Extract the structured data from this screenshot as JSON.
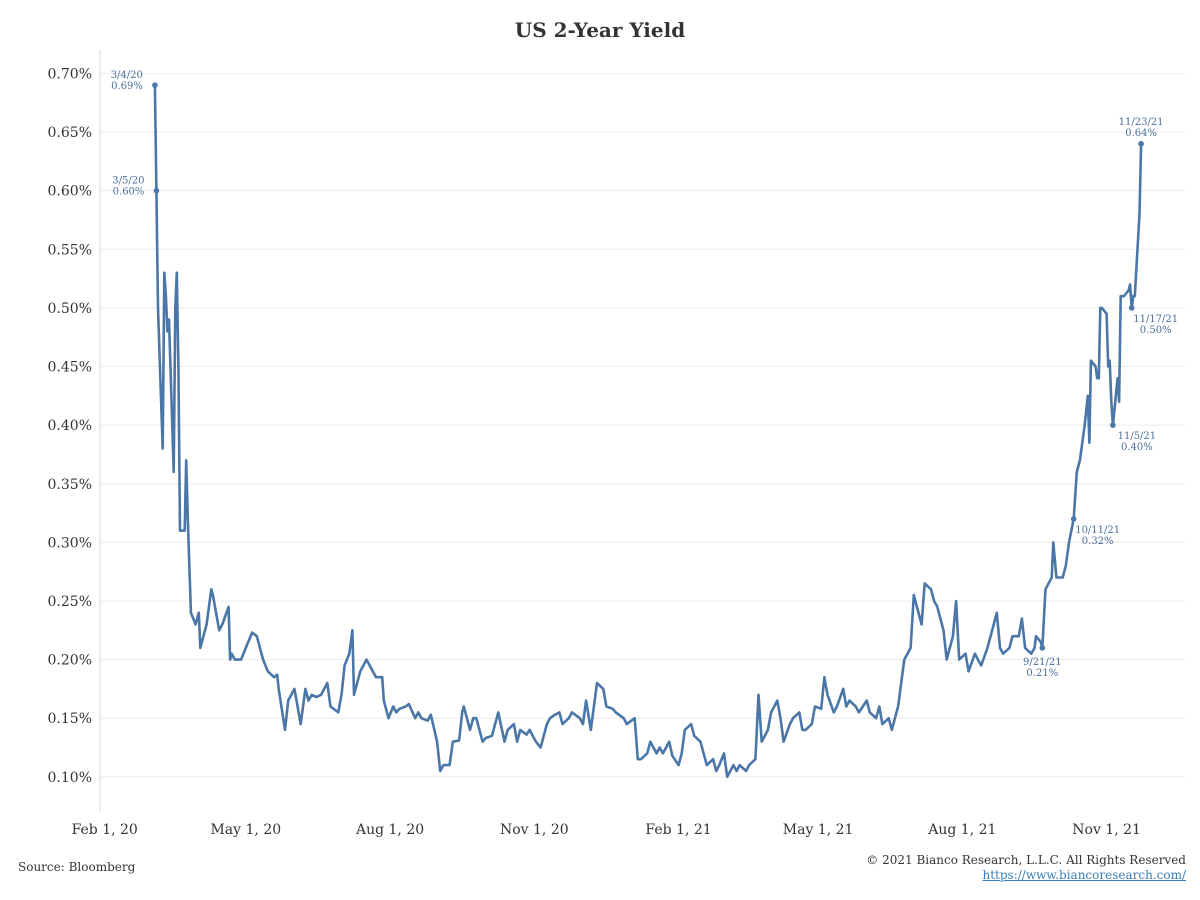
{
  "chart_data": {
    "type": "line",
    "title": "US 2-Year Yield",
    "xlabel": "",
    "ylabel": "",
    "x_range": [
      "2020-01-29",
      "2021-12-21"
    ],
    "ylim": [
      0.07,
      0.72
    ],
    "y_ticks": [
      0.1,
      0.15,
      0.2,
      0.25,
      0.3,
      0.35,
      0.4,
      0.45,
      0.5,
      0.55,
      0.6,
      0.65,
      0.7
    ],
    "y_tick_labels": [
      "0.10%",
      "0.15%",
      "0.20%",
      "0.25%",
      "0.30%",
      "0.35%",
      "0.40%",
      "0.45%",
      "0.50%",
      "0.55%",
      "0.60%",
      "0.65%",
      "0.70%"
    ],
    "x_ticks": [
      "2020-02-01",
      "2020-05-01",
      "2020-08-01",
      "2020-11-01",
      "2021-02-01",
      "2021-05-01",
      "2021-08-01",
      "2021-11-01"
    ],
    "x_tick_labels": [
      "Feb 1, 20",
      "May 1, 20",
      "Aug 1, 20",
      "Nov 1, 20",
      "Feb 1, 21",
      "May 1, 21",
      "Aug 1, 21",
      "Nov 1, 21"
    ],
    "grid": "horizontal",
    "series": [
      {
        "color": "#4a76a8",
        "points": [
          [
            "2020-03-04",
            0.69
          ],
          [
            "2020-03-05",
            0.6
          ],
          [
            "2020-03-06",
            0.5
          ],
          [
            "2020-03-09",
            0.38
          ],
          [
            "2020-03-10",
            0.53
          ],
          [
            "2020-03-11",
            0.51
          ],
          [
            "2020-03-12",
            0.48
          ],
          [
            "2020-03-13",
            0.49
          ],
          [
            "2020-03-16",
            0.36
          ],
          [
            "2020-03-17",
            0.5
          ],
          [
            "2020-03-18",
            0.53
          ],
          [
            "2020-03-19",
            0.45
          ],
          [
            "2020-03-20",
            0.31
          ],
          [
            "2020-03-23",
            0.31
          ],
          [
            "2020-03-24",
            0.37
          ],
          [
            "2020-03-25",
            0.32
          ],
          [
            "2020-03-27",
            0.24
          ],
          [
            "2020-03-30",
            0.23
          ],
          [
            "2020-04-01",
            0.24
          ],
          [
            "2020-04-02",
            0.21
          ],
          [
            "2020-04-06",
            0.23
          ],
          [
            "2020-04-09",
            0.26
          ],
          [
            "2020-04-10",
            0.255
          ],
          [
            "2020-04-14",
            0.225
          ],
          [
            "2020-04-16",
            0.23
          ],
          [
            "2020-04-20",
            0.245
          ],
          [
            "2020-04-21",
            0.2
          ],
          [
            "2020-04-22",
            0.205
          ],
          [
            "2020-04-24",
            0.2
          ],
          [
            "2020-04-28",
            0.2
          ],
          [
            "2020-05-01",
            0.21
          ],
          [
            "2020-05-05",
            0.223
          ],
          [
            "2020-05-08",
            0.22
          ],
          [
            "2020-05-12",
            0.2
          ],
          [
            "2020-05-15",
            0.19
          ],
          [
            "2020-05-19",
            0.185
          ],
          [
            "2020-05-21",
            0.187
          ],
          [
            "2020-05-22",
            0.175
          ],
          [
            "2020-05-26",
            0.14
          ],
          [
            "2020-05-28",
            0.165
          ],
          [
            "2020-06-01",
            0.175
          ],
          [
            "2020-06-03",
            0.16
          ],
          [
            "2020-06-05",
            0.145
          ],
          [
            "2020-06-08",
            0.175
          ],
          [
            "2020-06-10",
            0.165
          ],
          [
            "2020-06-12",
            0.17
          ],
          [
            "2020-06-15",
            0.168
          ],
          [
            "2020-06-18",
            0.17
          ],
          [
            "2020-06-22",
            0.18
          ],
          [
            "2020-06-24",
            0.16
          ],
          [
            "2020-06-29",
            0.155
          ],
          [
            "2020-07-01",
            0.17
          ],
          [
            "2020-07-03",
            0.195
          ],
          [
            "2020-07-06",
            0.205
          ],
          [
            "2020-07-08",
            0.225
          ],
          [
            "2020-07-09",
            0.17
          ],
          [
            "2020-07-13",
            0.19
          ],
          [
            "2020-07-15",
            0.195
          ],
          [
            "2020-07-17",
            0.2
          ],
          [
            "2020-07-21",
            0.19
          ],
          [
            "2020-07-23",
            0.185
          ],
          [
            "2020-07-27",
            0.185
          ],
          [
            "2020-07-28",
            0.165
          ],
          [
            "2020-07-31",
            0.15
          ],
          [
            "2020-08-03",
            0.16
          ],
          [
            "2020-08-05",
            0.155
          ],
          [
            "2020-08-07",
            0.158
          ],
          [
            "2020-08-11",
            0.16
          ],
          [
            "2020-08-13",
            0.162
          ],
          [
            "2020-08-17",
            0.15
          ],
          [
            "2020-08-19",
            0.155
          ],
          [
            "2020-08-21",
            0.15
          ],
          [
            "2020-08-25",
            0.148
          ],
          [
            "2020-08-27",
            0.153
          ],
          [
            "2020-08-31",
            0.13
          ],
          [
            "2020-09-02",
            0.105
          ],
          [
            "2020-09-04",
            0.11
          ],
          [
            "2020-09-08",
            0.11
          ],
          [
            "2020-09-10",
            0.13
          ],
          [
            "2020-09-14",
            0.131
          ],
          [
            "2020-09-16",
            0.155
          ],
          [
            "2020-09-17",
            0.16
          ],
          [
            "2020-09-21",
            0.14
          ],
          [
            "2020-09-23",
            0.15
          ],
          [
            "2020-09-25",
            0.15
          ],
          [
            "2020-09-29",
            0.13
          ],
          [
            "2020-10-01",
            0.133
          ],
          [
            "2020-10-05",
            0.135
          ],
          [
            "2020-10-07",
            0.145
          ],
          [
            "2020-10-09",
            0.155
          ],
          [
            "2020-10-13",
            0.13
          ],
          [
            "2020-10-15",
            0.14
          ],
          [
            "2020-10-19",
            0.145
          ],
          [
            "2020-10-21",
            0.13
          ],
          [
            "2020-10-23",
            0.14
          ],
          [
            "2020-10-27",
            0.136
          ],
          [
            "2020-10-29",
            0.14
          ],
          [
            "2020-11-02",
            0.13
          ],
          [
            "2020-11-05",
            0.125
          ],
          [
            "2020-11-09",
            0.145
          ],
          [
            "2020-11-11",
            0.15
          ],
          [
            "2020-11-13",
            0.152
          ],
          [
            "2020-11-17",
            0.155
          ],
          [
            "2020-11-19",
            0.145
          ],
          [
            "2020-11-23",
            0.15
          ],
          [
            "2020-11-25",
            0.155
          ],
          [
            "2020-11-30",
            0.15
          ],
          [
            "2020-12-02",
            0.145
          ],
          [
            "2020-12-04",
            0.165
          ],
          [
            "2020-12-07",
            0.14
          ],
          [
            "2020-12-09",
            0.16
          ],
          [
            "2020-12-11",
            0.18
          ],
          [
            "2020-12-15",
            0.175
          ],
          [
            "2020-12-17",
            0.16
          ],
          [
            "2020-12-21",
            0.158
          ],
          [
            "2020-12-23",
            0.155
          ],
          [
            "2020-12-28",
            0.15
          ],
          [
            "2020-12-30",
            0.145
          ],
          [
            "2021-01-04",
            0.15
          ],
          [
            "2021-01-06",
            0.115
          ],
          [
            "2021-01-08",
            0.115
          ],
          [
            "2021-01-12",
            0.12
          ],
          [
            "2021-01-14",
            0.13
          ],
          [
            "2021-01-18",
            0.12
          ],
          [
            "2021-01-20",
            0.125
          ],
          [
            "2021-01-22",
            0.12
          ],
          [
            "2021-01-26",
            0.13
          ],
          [
            "2021-01-28",
            0.118
          ],
          [
            "2021-02-01",
            0.11
          ],
          [
            "2021-02-03",
            0.12
          ],
          [
            "2021-02-05",
            0.14
          ],
          [
            "2021-02-09",
            0.145
          ],
          [
            "2021-02-11",
            0.135
          ],
          [
            "2021-02-15",
            0.13
          ],
          [
            "2021-02-17",
            0.12
          ],
          [
            "2021-02-19",
            0.11
          ],
          [
            "2021-02-23",
            0.115
          ],
          [
            "2021-02-25",
            0.105
          ],
          [
            "2021-02-27",
            0.11
          ],
          [
            "2021-03-02",
            0.12
          ],
          [
            "2021-03-04",
            0.1
          ],
          [
            "2021-03-08",
            0.11
          ],
          [
            "2021-03-10",
            0.105
          ],
          [
            "2021-03-12",
            0.11
          ],
          [
            "2021-03-16",
            0.105
          ],
          [
            "2021-03-18",
            0.11
          ],
          [
            "2021-03-22",
            0.115
          ],
          [
            "2021-03-24",
            0.17
          ],
          [
            "2021-03-26",
            0.13
          ],
          [
            "2021-03-30",
            0.14
          ],
          [
            "2021-04-01",
            0.155
          ],
          [
            "2021-04-05",
            0.165
          ],
          [
            "2021-04-07",
            0.15
          ],
          [
            "2021-04-09",
            0.13
          ],
          [
            "2021-04-13",
            0.145
          ],
          [
            "2021-04-15",
            0.15
          ],
          [
            "2021-04-19",
            0.155
          ],
          [
            "2021-04-21",
            0.14
          ],
          [
            "2021-04-23",
            0.14
          ],
          [
            "2021-04-27",
            0.145
          ],
          [
            "2021-04-29",
            0.16
          ],
          [
            "2021-05-03",
            0.158
          ],
          [
            "2021-05-05",
            0.185
          ],
          [
            "2021-05-07",
            0.17
          ],
          [
            "2021-05-11",
            0.155
          ],
          [
            "2021-05-13",
            0.16
          ],
          [
            "2021-05-17",
            0.175
          ],
          [
            "2021-05-19",
            0.16
          ],
          [
            "2021-05-21",
            0.165
          ],
          [
            "2021-05-25",
            0.16
          ],
          [
            "2021-05-27",
            0.155
          ],
          [
            "2021-06-01",
            0.165
          ],
          [
            "2021-06-03",
            0.155
          ],
          [
            "2021-06-07",
            0.15
          ],
          [
            "2021-06-09",
            0.16
          ],
          [
            "2021-06-11",
            0.145
          ],
          [
            "2021-06-15",
            0.15
          ],
          [
            "2021-06-17",
            0.14
          ],
          [
            "2021-06-21",
            0.16
          ],
          [
            "2021-06-23",
            0.18
          ],
          [
            "2021-06-25",
            0.2
          ],
          [
            "2021-06-29",
            0.21
          ],
          [
            "2021-07-01",
            0.255
          ],
          [
            "2021-07-06",
            0.23
          ],
          [
            "2021-07-08",
            0.265
          ],
          [
            "2021-07-12",
            0.26
          ],
          [
            "2021-07-14",
            0.25
          ],
          [
            "2021-07-16",
            0.245
          ],
          [
            "2021-07-20",
            0.225
          ],
          [
            "2021-07-22",
            0.2
          ],
          [
            "2021-07-26",
            0.22
          ],
          [
            "2021-07-28",
            0.25
          ],
          [
            "2021-07-30",
            0.2
          ],
          [
            "2021-08-03",
            0.205
          ],
          [
            "2021-08-05",
            0.19
          ],
          [
            "2021-08-09",
            0.205
          ],
          [
            "2021-08-11",
            0.2
          ],
          [
            "2021-08-13",
            0.195
          ],
          [
            "2021-08-17",
            0.21
          ],
          [
            "2021-08-19",
            0.22
          ],
          [
            "2021-08-23",
            0.24
          ],
          [
            "2021-08-25",
            0.21
          ],
          [
            "2021-08-27",
            0.205
          ],
          [
            "2021-08-31",
            0.21
          ],
          [
            "2021-09-02",
            0.22
          ],
          [
            "2021-09-06",
            0.22
          ],
          [
            "2021-09-08",
            0.235
          ],
          [
            "2021-09-10",
            0.21
          ],
          [
            "2021-09-14",
            0.205
          ],
          [
            "2021-09-16",
            0.21
          ],
          [
            "2021-09-17",
            0.22
          ],
          [
            "2021-09-20",
            0.215
          ],
          [
            "2021-09-21",
            0.21
          ],
          [
            "2021-09-23",
            0.26
          ],
          [
            "2021-09-27",
            0.27
          ],
          [
            "2021-09-28",
            0.3
          ],
          [
            "2021-09-30",
            0.27
          ],
          [
            "2021-10-04",
            0.27
          ],
          [
            "2021-10-06",
            0.28
          ],
          [
            "2021-10-08",
            0.3
          ],
          [
            "2021-10-11",
            0.32
          ],
          [
            "2021-10-13",
            0.36
          ],
          [
            "2021-10-15",
            0.37
          ],
          [
            "2021-10-18",
            0.4
          ],
          [
            "2021-10-20",
            0.425
          ],
          [
            "2021-10-21",
            0.385
          ],
          [
            "2021-10-22",
            0.455
          ],
          [
            "2021-10-25",
            0.45
          ],
          [
            "2021-10-26",
            0.44
          ],
          [
            "2021-10-27",
            0.44
          ],
          [
            "2021-10-28",
            0.5
          ],
          [
            "2021-10-29",
            0.5
          ],
          [
            "2021-11-01",
            0.495
          ],
          [
            "2021-11-02",
            0.45
          ],
          [
            "2021-11-03",
            0.455
          ],
          [
            "2021-11-04",
            0.42
          ],
          [
            "2021-11-05",
            0.4
          ],
          [
            "2021-11-08",
            0.44
          ],
          [
            "2021-11-09",
            0.42
          ],
          [
            "2021-11-10",
            0.51
          ],
          [
            "2021-11-12",
            0.51
          ],
          [
            "2021-11-15",
            0.515
          ],
          [
            "2021-11-16",
            0.52
          ],
          [
            "2021-11-17",
            0.5
          ],
          [
            "2021-11-18",
            0.51
          ],
          [
            "2021-11-19",
            0.51
          ],
          [
            "2021-11-22",
            0.58
          ],
          [
            "2021-11-23",
            0.64
          ]
        ]
      }
    ],
    "annotations": [
      {
        "date": "2020-03-04",
        "value": 0.69,
        "line1": "3/4/20",
        "line2": "0.69%",
        "side": "left"
      },
      {
        "date": "2020-03-05",
        "value": 0.6,
        "line1": "3/5/20",
        "line2": "0.60%",
        "side": "left"
      },
      {
        "date": "2021-09-21",
        "value": 0.21,
        "line1": "9/21/21",
        "line2": "0.21%",
        "side": "below"
      },
      {
        "date": "2021-10-11",
        "value": 0.32,
        "line1": "10/11/21",
        "line2": "0.32%",
        "side": "right-below"
      },
      {
        "date": "2021-11-05",
        "value": 0.4,
        "line1": "11/5/21",
        "line2": "0.40%",
        "side": "right-below"
      },
      {
        "date": "2021-11-17",
        "value": 0.5,
        "line1": "11/17/21",
        "line2": "0.50%",
        "side": "right-below"
      },
      {
        "date": "2021-11-23",
        "value": 0.64,
        "line1": "11/23/21",
        "line2": "0.64%",
        "side": "above"
      }
    ]
  },
  "footer": {
    "source": "Source: Bloomberg",
    "copyright": "© 2021 Bianco Research, L.L.C. All Rights Reserved",
    "url": "https://www.biancoresearch.com/"
  }
}
